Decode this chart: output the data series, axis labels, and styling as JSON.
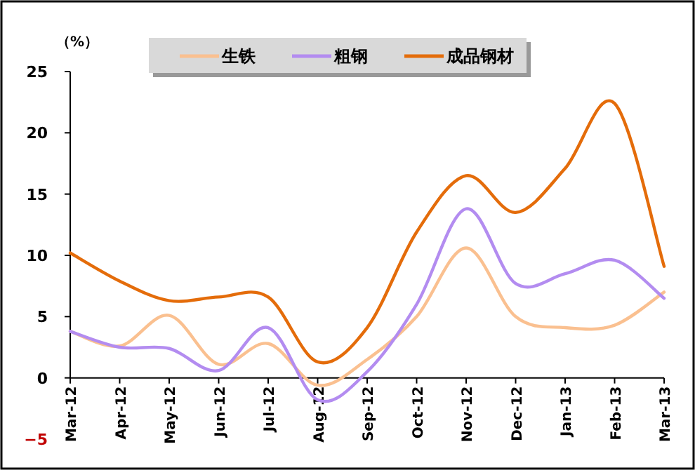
{
  "chart_data": {
    "type": "line",
    "ylabel": "（%）",
    "categories": [
      "Mar-12",
      "Apr-12",
      "May-12",
      "Jun-12",
      "Jul-12",
      "Aug-12",
      "Sep-12",
      "Oct-12",
      "Nov-12",
      "Dec-12",
      "Jan-13",
      "Feb-13",
      "Mar-13"
    ],
    "series": [
      {
        "name": "生铁",
        "color": "#fac090",
        "values": [
          3.8,
          2.6,
          5.1,
          1.1,
          2.8,
          -0.6,
          1.5,
          5.0,
          10.6,
          5.0,
          4.1,
          4.3,
          7.0
        ]
      },
      {
        "name": "粗钢",
        "color": "#b38cf0",
        "values": [
          3.8,
          2.5,
          2.4,
          0.6,
          4.1,
          -1.8,
          0.5,
          6.0,
          13.8,
          7.7,
          8.5,
          9.6,
          6.5
        ]
      },
      {
        "name": "成品钢材",
        "color": "#e46c0a",
        "values": [
          10.2,
          7.9,
          6.3,
          6.6,
          6.6,
          1.3,
          4.1,
          11.9,
          16.5,
          13.5,
          17.1,
          22.4,
          9.1
        ]
      }
    ],
    "ylim": [
      -5,
      25
    ],
    "yticks": [
      -5,
      0,
      5,
      10,
      15,
      20,
      25
    ],
    "legend": "top",
    "grid": false,
    "marker": "none",
    "line_style": "solid"
  }
}
